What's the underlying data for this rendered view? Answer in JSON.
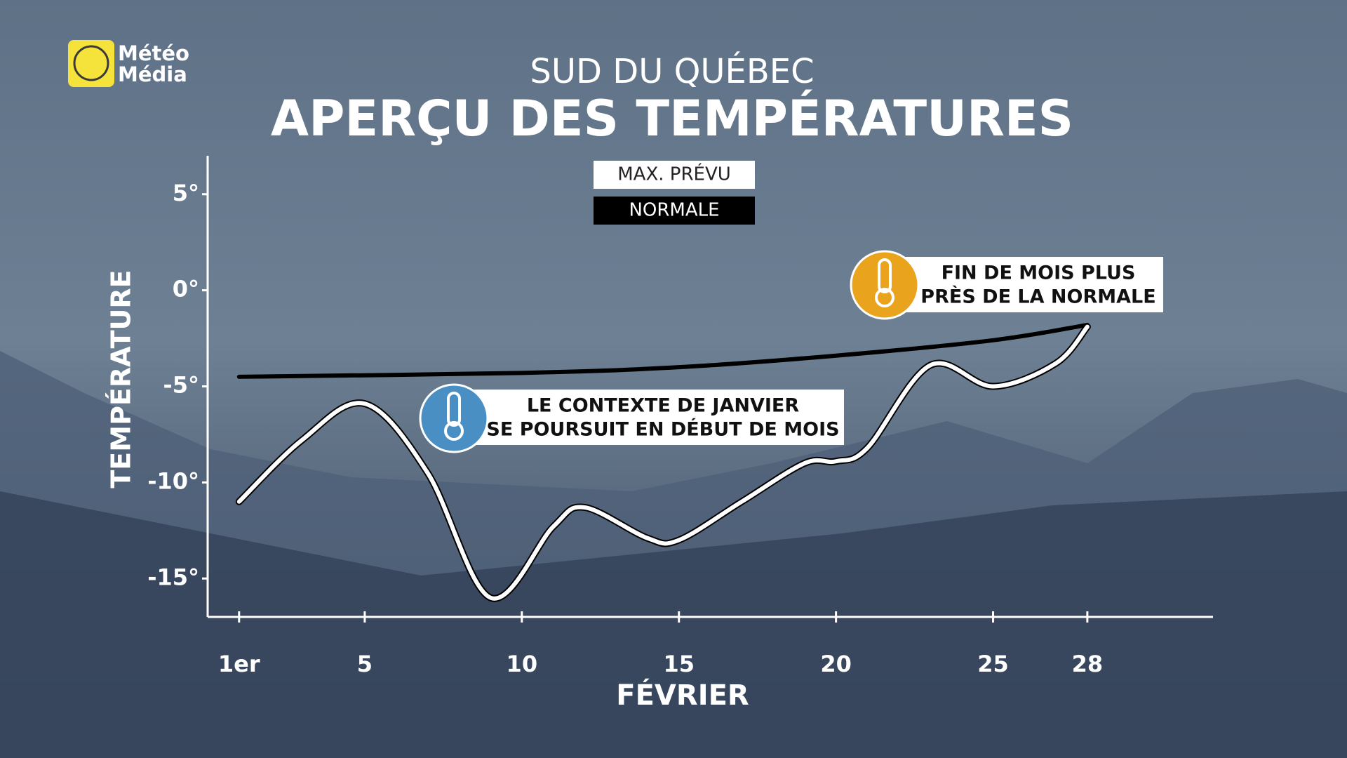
{
  "brand": [
    "Météo",
    "Média"
  ],
  "chart_data": {
    "type": "line",
    "title": "SUD DU QUÉBEC",
    "subtitle": "APERÇU DES TEMPÉRATURES",
    "x_label": "FÉVRIER",
    "y_label": "TEMPÉRATURE",
    "xlim": [
      0,
      32
    ],
    "ylim": [
      -17,
      7
    ],
    "xticks": [
      {
        "value": 1,
        "label": "1er"
      },
      5,
      10,
      15,
      20,
      25,
      28
    ],
    "yticks": [
      {
        "value": 5,
        "label": "5°"
      },
      {
        "value": 0,
        "label": "0°"
      },
      {
        "value": -5,
        "label": "-5°"
      },
      {
        "value": -10,
        "label": "-10°"
      },
      {
        "value": -15,
        "label": "-15°"
      }
    ],
    "series": [
      {
        "name": "MAX. PRÉVU",
        "color": "#ffffff",
        "x": [
          1,
          3,
          5,
          7,
          9,
          11,
          12,
          14,
          15,
          17,
          19,
          20,
          21,
          23,
          25,
          27,
          28
        ],
        "values": [
          -11.0,
          -7.8,
          -5.9,
          -9.5,
          -16.0,
          -12.3,
          -11.3,
          -12.9,
          -13.0,
          -11.0,
          -9.0,
          -8.9,
          -8.2,
          -3.9,
          -5.0,
          -3.8,
          -1.9
        ]
      },
      {
        "name": "NORMALE",
        "color": "#000000",
        "x": [
          1,
          10,
          15,
          20,
          25,
          28
        ],
        "values": [
          -4.5,
          -4.3,
          -4.0,
          -3.4,
          -2.6,
          -1.8
        ]
      }
    ],
    "annotations": [
      {
        "lines": [
          "LE CONTEXTE DE JANVIER",
          "SE POURSUIT EN DÉBUT DE MOIS"
        ]
      },
      {
        "lines": [
          "FIN DE MOIS PLUS",
          "PRÈS DE LA NORMALE"
        ]
      }
    ]
  }
}
